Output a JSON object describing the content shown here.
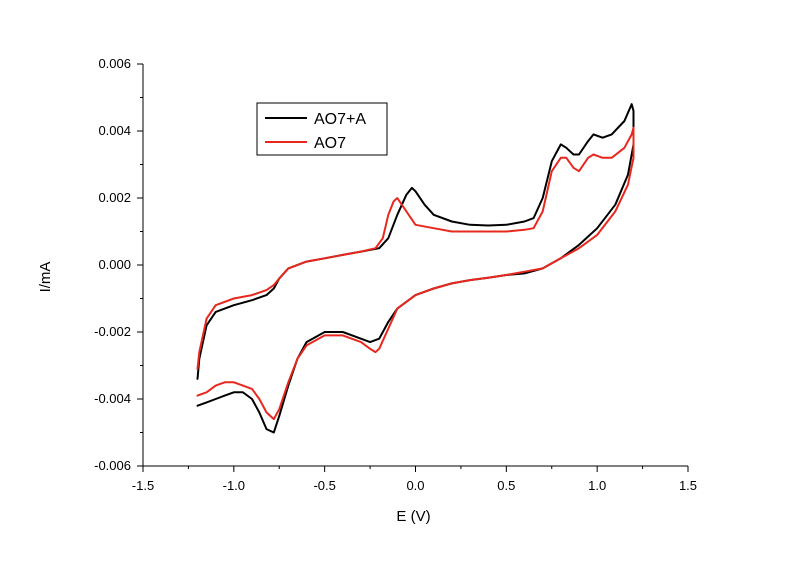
{
  "chart_data": {
    "type": "line",
    "xlabel": "E (V)",
    "ylabel": "I/mA",
    "xlim": [
      -1.5,
      1.5
    ],
    "ylim": [
      -0.006,
      0.006
    ],
    "x_ticks": [
      "-1.5",
      "-1.0",
      "-0.5",
      "0.0",
      "0.5",
      "1.0",
      "1.5"
    ],
    "y_ticks": [
      "-0.006",
      "-0.004",
      "-0.002",
      "0.000",
      "0.002",
      "0.004",
      "0.006"
    ],
    "x_tick_values": [
      -1.5,
      -1.0,
      -0.5,
      0.0,
      0.5,
      1.0,
      1.5
    ],
    "y_tick_values": [
      -0.006,
      -0.004,
      -0.002,
      0.0,
      0.002,
      0.004,
      0.006
    ],
    "grid": false,
    "legend_position": "top-left",
    "series": [
      {
        "name": "AO7+A",
        "color": "#000000",
        "x": [
          -1.2,
          -1.19,
          -1.15,
          -1.1,
          -1.0,
          -0.9,
          -0.82,
          -0.78,
          -0.75,
          -0.7,
          -0.6,
          -0.5,
          -0.4,
          -0.3,
          -0.2,
          -0.15,
          -0.1,
          -0.05,
          -0.02,
          0.0,
          0.05,
          0.1,
          0.2,
          0.3,
          0.4,
          0.5,
          0.6,
          0.65,
          0.7,
          0.75,
          0.8,
          0.83,
          0.87,
          0.9,
          0.95,
          0.98,
          1.03,
          1.08,
          1.15,
          1.19,
          1.2,
          1.2,
          1.17,
          1.1,
          1.0,
          0.9,
          0.8,
          0.7,
          0.6,
          0.5,
          0.4,
          0.3,
          0.2,
          0.1,
          0.0,
          -0.1,
          -0.15,
          -0.2,
          -0.25,
          -0.3,
          -0.4,
          -0.5,
          -0.6,
          -0.65,
          -0.7,
          -0.75,
          -0.78,
          -0.82,
          -0.86,
          -0.9,
          -0.95,
          -1.0,
          -1.05,
          -1.1,
          -1.15,
          -1.2
        ],
        "y": [
          -0.0034,
          -0.0028,
          -0.0018,
          -0.0014,
          -0.0012,
          -0.00105,
          -0.0009,
          -0.0007,
          -0.0004,
          -0.0001,
          0.0001,
          0.0002,
          0.0003,
          0.0004,
          0.0005,
          0.0008,
          0.0015,
          0.0021,
          0.0023,
          0.0022,
          0.0018,
          0.0015,
          0.0013,
          0.0012,
          0.00118,
          0.0012,
          0.0013,
          0.0014,
          0.002,
          0.0031,
          0.0036,
          0.0035,
          0.0033,
          0.0033,
          0.0037,
          0.0039,
          0.0038,
          0.0039,
          0.0043,
          0.0048,
          0.0046,
          0.0036,
          0.0027,
          0.0018,
          0.0011,
          0.0006,
          0.0002,
          -0.0001,
          -0.00025,
          -0.0003,
          -0.00038,
          -0.00045,
          -0.00055,
          -0.0007,
          -0.0009,
          -0.0013,
          -0.0017,
          -0.0022,
          -0.0023,
          -0.0022,
          -0.002,
          -0.002,
          -0.0023,
          -0.0028,
          -0.0036,
          -0.0045,
          -0.005,
          -0.0049,
          -0.0044,
          -0.004,
          -0.0038,
          -0.0038,
          -0.0039,
          -0.004,
          -0.0041,
          -0.0042
        ]
      },
      {
        "name": "AO7",
        "color": "#e8281e",
        "x": [
          -1.2,
          -1.19,
          -1.15,
          -1.1,
          -1.0,
          -0.9,
          -0.82,
          -0.78,
          -0.75,
          -0.7,
          -0.6,
          -0.5,
          -0.4,
          -0.3,
          -0.22,
          -0.18,
          -0.15,
          -0.12,
          -0.1,
          -0.05,
          0.0,
          0.1,
          0.2,
          0.3,
          0.4,
          0.5,
          0.6,
          0.65,
          0.7,
          0.75,
          0.8,
          0.83,
          0.87,
          0.9,
          0.95,
          0.98,
          1.03,
          1.08,
          1.15,
          1.19,
          1.2,
          1.2,
          1.17,
          1.1,
          1.0,
          0.9,
          0.8,
          0.7,
          0.6,
          0.5,
          0.4,
          0.3,
          0.2,
          0.1,
          0.0,
          -0.1,
          -0.15,
          -0.2,
          -0.22,
          -0.25,
          -0.3,
          -0.4,
          -0.5,
          -0.6,
          -0.65,
          -0.7,
          -0.75,
          -0.78,
          -0.82,
          -0.86,
          -0.9,
          -0.95,
          -1.0,
          -1.05,
          -1.1,
          -1.15,
          -1.2
        ],
        "y": [
          -0.0031,
          -0.0026,
          -0.0016,
          -0.0012,
          -0.001,
          -0.0009,
          -0.00075,
          -0.0006,
          -0.0004,
          -0.0001,
          0.0001,
          0.0002,
          0.0003,
          0.0004,
          0.0005,
          0.0008,
          0.0015,
          0.0019,
          0.002,
          0.0016,
          0.0012,
          0.0011,
          0.001,
          0.001,
          0.001,
          0.001,
          0.00105,
          0.0011,
          0.0016,
          0.0028,
          0.0032,
          0.0032,
          0.0029,
          0.0028,
          0.0032,
          0.0033,
          0.0032,
          0.0032,
          0.0035,
          0.0039,
          0.0041,
          0.0032,
          0.0024,
          0.0016,
          0.0009,
          0.0005,
          0.0002,
          -0.0001,
          -0.0002,
          -0.0003,
          -0.00038,
          -0.00045,
          -0.00055,
          -0.0007,
          -0.0009,
          -0.0013,
          -0.0019,
          -0.0025,
          -0.0026,
          -0.0025,
          -0.0023,
          -0.0021,
          -0.0021,
          -0.0024,
          -0.0028,
          -0.0035,
          -0.0043,
          -0.0046,
          -0.0044,
          -0.004,
          -0.0037,
          -0.0036,
          -0.0035,
          -0.0035,
          -0.0036,
          -0.0038,
          -0.0039
        ]
      }
    ]
  }
}
